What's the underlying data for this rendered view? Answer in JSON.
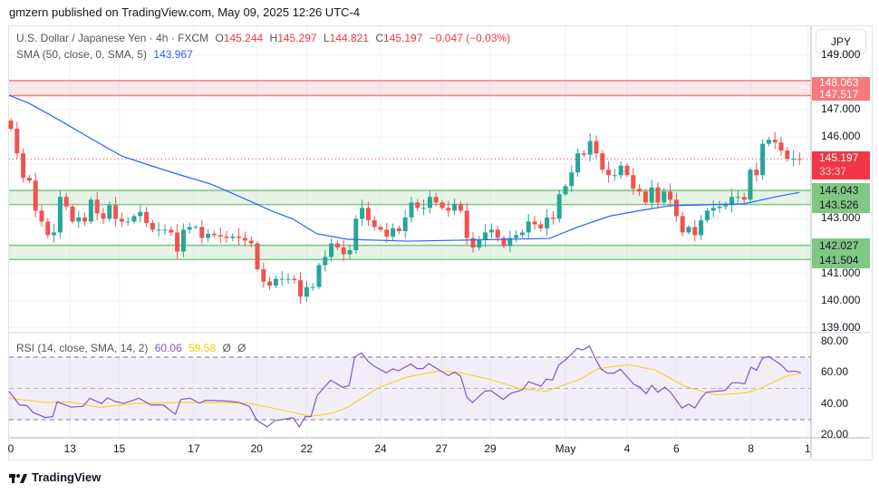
{
  "header": {
    "published": "gmzern published on TradingView.com, May 09, 2025 12:26 UTC-4"
  },
  "legend": {
    "symbol": "U.S. Dollar / Japanese Yen · 4h · FXCM",
    "o_label": "O",
    "o": "145.244",
    "h_label": "H",
    "h": "145.297",
    "l_label": "L",
    "l": "144.821",
    "c_label": "C",
    "c": "145.197",
    "change": "−0.047 (−0.03%)",
    "sma_label": "SMA (50, close, 0, SMA, 5)",
    "sma_value": "143.967",
    "rsi_label": "RSI (14, close, SMA, 14, 2)",
    "rsi_value": "60.06",
    "rsi_ma_value": "59.58",
    "rsi_na1": "Ø",
    "rsi_na2": "Ø"
  },
  "currency_button": "JPY",
  "price_axis": {
    "ticks": [
      {
        "p": 149,
        "label": "149.000"
      },
      {
        "p": 147,
        "label": "147.000"
      },
      {
        "p": 146,
        "label": "146.000"
      },
      {
        "p": 143,
        "label": "143.000"
      },
      {
        "p": 141,
        "label": "141.000"
      },
      {
        "p": 140,
        "label": "140.000"
      },
      {
        "p": 139,
        "label": "139.000"
      }
    ],
    "rsi_ticks": [
      {
        "v": 80,
        "label": "80.00"
      },
      {
        "v": 60,
        "label": "60.00"
      },
      {
        "v": 40,
        "label": "40.00"
      },
      {
        "v": 20,
        "label": "20.00"
      }
    ],
    "zone_red": {
      "top": "148.063",
      "bottom": "147.517"
    },
    "zone_green1": {
      "top": "144.043",
      "bottom": "143.526"
    },
    "zone_green2": {
      "top": "142.027",
      "bottom": "141.504"
    },
    "last_price": "145.197",
    "countdown": "33:37"
  },
  "time_axis": [
    {
      "i": 0,
      "label": "0"
    },
    {
      "i": 9.6,
      "label": "13"
    },
    {
      "i": 17.6,
      "label": "15"
    },
    {
      "i": 29.7,
      "label": "17"
    },
    {
      "i": 39.9,
      "label": "20"
    },
    {
      "i": 48,
      "label": "22"
    },
    {
      "i": 60,
      "label": "24"
    },
    {
      "i": 69.9,
      "label": "27"
    },
    {
      "i": 77.8,
      "label": "29"
    },
    {
      "i": 90,
      "label": "May"
    },
    {
      "i": 100,
      "label": "4"
    },
    {
      "i": 108,
      "label": "6"
    },
    {
      "i": 120.1,
      "label": "8"
    },
    {
      "i": 129.3,
      "label": "1"
    }
  ],
  "footer": {
    "brand": "TradingView"
  },
  "colors": {
    "up": "#26a69a",
    "down": "#ef5350",
    "sma": "#2962ff",
    "rsi": "#7e57c2",
    "rsi_ma": "#f5d000",
    "zone_red": "#f7797d",
    "zone_green": "#81c784",
    "last": "#f23645"
  },
  "chart_data": {
    "type": "candlestick",
    "symbol": "USDJPY 4h",
    "first_open": 146.6,
    "closes": [
      146.3,
      145.4,
      144.5,
      144.4,
      143.3,
      142.9,
      142.4,
      142.5,
      143.8,
      143.45,
      142.9,
      143.05,
      142.9,
      143.7,
      143.2,
      143.0,
      143.5,
      143.0,
      142.9,
      142.9,
      143.1,
      143.25,
      142.85,
      142.6,
      142.6,
      142.6,
      142.5,
      141.8,
      142.6,
      142.7,
      142.7,
      142.3,
      142.45,
      142.4,
      142.35,
      142.3,
      142.35,
      142.3,
      142.2,
      142.1,
      141.15,
      140.7,
      140.55,
      140.8,
      140.8,
      140.8,
      140.75,
      140.15,
      140.5,
      140.5,
      141.3,
      141.6,
      142.1,
      141.95,
      141.7,
      141.85,
      143.0,
      143.4,
      142.95,
      142.7,
      142.6,
      142.35,
      142.65,
      142.55,
      143.05,
      143.6,
      143.4,
      143.4,
      143.8,
      143.6,
      143.4,
      143.3,
      143.55,
      143.3,
      142.3,
      141.95,
      142.25,
      142.5,
      142.6,
      142.3,
      142.0,
      142.3,
      142.4,
      142.5,
      142.9,
      142.8,
      142.65,
      143.05,
      143.0,
      143.9,
      144.2,
      144.7,
      145.4,
      145.35,
      145.85,
      145.4,
      144.8,
      144.6,
      144.6,
      144.95,
      144.6,
      144.1,
      144.0,
      143.6,
      144.15,
      143.6,
      144.0,
      143.7,
      143.1,
      142.5,
      142.7,
      142.4,
      142.95,
      143.3,
      143.4,
      143.45,
      143.5,
      143.8,
      143.8,
      143.7,
      144.8,
      144.6,
      145.75,
      145.9,
      145.8,
      145.5,
      145.2,
      145.2,
      145.197
    ],
    "sma": [
      [
        -0.3,
        147.53
      ],
      [
        3,
        147.23
      ],
      [
        8,
        146.6
      ],
      [
        13,
        145.94
      ],
      [
        18,
        145.3
      ],
      [
        22.8,
        144.94
      ],
      [
        27.6,
        144.6
      ],
      [
        32.5,
        144.27
      ],
      [
        37.5,
        143.78
      ],
      [
        42.4,
        143.28
      ],
      [
        45.7,
        143.0
      ],
      [
        49.7,
        142.45
      ],
      [
        54.6,
        142.25
      ],
      [
        64.4,
        142.18
      ],
      [
        87.4,
        142.28
      ],
      [
        92,
        142.7
      ],
      [
        97.2,
        143.1
      ],
      [
        102,
        143.3
      ],
      [
        107,
        143.48
      ],
      [
        119,
        143.55
      ],
      [
        124,
        143.8
      ],
      [
        128,
        143.97
      ]
    ],
    "rsi": [
      [
        -0.3,
        48.2
      ],
      [
        1.4,
        39.4
      ],
      [
        2.6,
        39
      ],
      [
        3.6,
        34.6
      ],
      [
        5.6,
        31.4
      ],
      [
        6.8,
        32
      ],
      [
        7.5,
        41.4
      ],
      [
        9.8,
        38
      ],
      [
        11.7,
        38.5
      ],
      [
        12.8,
        43.7
      ],
      [
        14.7,
        40.3
      ],
      [
        15.7,
        44
      ],
      [
        16.9,
        41.6
      ],
      [
        18.3,
        40.4
      ],
      [
        20.8,
        43.7
      ],
      [
        22.7,
        39.4
      ],
      [
        24.7,
        39.4
      ],
      [
        26.7,
        33.5
      ],
      [
        27.6,
        43
      ],
      [
        29.1,
        43.7
      ],
      [
        30.6,
        40.5
      ],
      [
        31.6,
        42.4
      ],
      [
        35.5,
        41.8
      ],
      [
        37,
        41
      ],
      [
        38.7,
        38.5
      ],
      [
        39.9,
        29.6
      ],
      [
        41.6,
        25.4
      ],
      [
        42.8,
        29.3
      ],
      [
        45.8,
        31.2
      ],
      [
        46.8,
        25.4
      ],
      [
        47.8,
        32
      ],
      [
        48.7,
        32
      ],
      [
        49.7,
        45.5
      ],
      [
        51.9,
        55.2
      ],
      [
        53.9,
        50.6
      ],
      [
        54.9,
        51.9
      ],
      [
        55.8,
        70.1
      ],
      [
        56.9,
        72.7
      ],
      [
        58,
        67.1
      ],
      [
        59,
        64.1
      ],
      [
        60.9,
        60
      ],
      [
        62,
        62.5
      ],
      [
        62.9,
        61.3
      ],
      [
        64.9,
        65.6
      ],
      [
        65.9,
        62.7
      ],
      [
        66.9,
        62.7
      ],
      [
        67.8,
        65.9
      ],
      [
        69.8,
        61.1
      ],
      [
        71,
        58.2
      ],
      [
        72,
        60.3
      ],
      [
        73,
        57.8
      ],
      [
        74,
        44.3
      ],
      [
        74.9,
        41
      ],
      [
        76.9,
        48.2
      ],
      [
        77.9,
        48.6
      ],
      [
        79.9,
        42.9
      ],
      [
        81.1,
        46.8
      ],
      [
        83,
        49.1
      ],
      [
        84,
        54.3
      ],
      [
        86,
        51.4
      ],
      [
        86.9,
        55.9
      ],
      [
        87.9,
        55.3
      ],
      [
        88.9,
        65
      ],
      [
        90.1,
        68.5
      ],
      [
        91.9,
        75.6
      ],
      [
        92.8,
        74.6
      ],
      [
        93.9,
        77.1
      ],
      [
        94.8,
        69.4
      ],
      [
        95.8,
        62.3
      ],
      [
        96.8,
        59.8
      ],
      [
        97.9,
        59.8
      ],
      [
        98.9,
        62.3
      ],
      [
        101.1,
        52.6
      ],
      [
        102.1,
        50.7
      ],
      [
        103.1,
        46.6
      ],
      [
        104,
        52
      ],
      [
        105,
        47.6
      ],
      [
        106.1,
        50.7
      ],
      [
        107,
        47.8
      ],
      [
        108.9,
        37.5
      ],
      [
        110,
        39.9
      ],
      [
        111,
        37.5
      ],
      [
        112.1,
        44.3
      ],
      [
        112.9,
        47.6
      ],
      [
        115.9,
        48.7
      ],
      [
        117,
        53.6
      ],
      [
        118.1,
        53.6
      ],
      [
        119.1,
        53
      ],
      [
        120.1,
        63.6
      ],
      [
        121,
        61.7
      ],
      [
        122,
        69.4
      ],
      [
        123,
        70.4
      ],
      [
        125,
        65
      ],
      [
        126.1,
        60.7
      ],
      [
        127.2,
        61.1
      ],
      [
        128.2,
        60.06
      ]
    ],
    "rsi_ma": [
      [
        -0.3,
        43.7
      ],
      [
        5.6,
        41
      ],
      [
        9.5,
        41.4
      ],
      [
        14.4,
        37.9
      ],
      [
        20.3,
        40.4
      ],
      [
        27.6,
        41
      ],
      [
        38.4,
        40.6
      ],
      [
        42.4,
        37.5
      ],
      [
        48.7,
        32.1
      ],
      [
        52.2,
        34.1
      ],
      [
        54.6,
        37.9
      ],
      [
        59.5,
        50.1
      ],
      [
        64.2,
        57.2
      ],
      [
        69.3,
        61.1
      ],
      [
        72.7,
        60.3
      ],
      [
        77.6,
        55.9
      ],
      [
        82.5,
        50.1
      ],
      [
        86.9,
        48.2
      ],
      [
        92.4,
        55.9
      ],
      [
        95.3,
        62.7
      ],
      [
        100.2,
        65.2
      ],
      [
        104.6,
        61.7
      ],
      [
        109.5,
        51.1
      ],
      [
        114.4,
        45.8
      ],
      [
        119.3,
        47.2
      ],
      [
        121.7,
        50.1
      ],
      [
        125.7,
        57.8
      ],
      [
        128.2,
        59.58
      ]
    ],
    "rsi_bands": [
      70,
      50,
      30
    ],
    "ylim": [
      138.5,
      149.2
    ],
    "rsi_ylim": [
      20,
      80
    ]
  }
}
